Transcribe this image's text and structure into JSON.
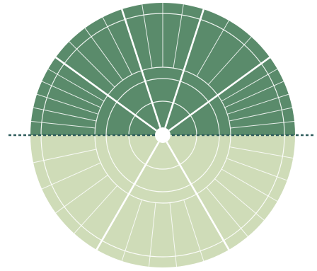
{
  "diagram": {
    "type": "circular-segment-wheel",
    "colors": {
      "upper_fill": "#5a8b6b",
      "lower_fill": "#cfdcb8",
      "divider": "#ffffff",
      "horizon_line": "#2f5c5c",
      "background": "#ffffff"
    },
    "upper_half": {
      "major_sectors": 5,
      "subdivisions": [
        6,
        3,
        4,
        4,
        6
      ]
    },
    "lower_half": {
      "major_sectors": 3,
      "subdivisions": [
        5,
        5,
        6
      ]
    },
    "ring_count": 4,
    "horizon_style": "dotted"
  }
}
